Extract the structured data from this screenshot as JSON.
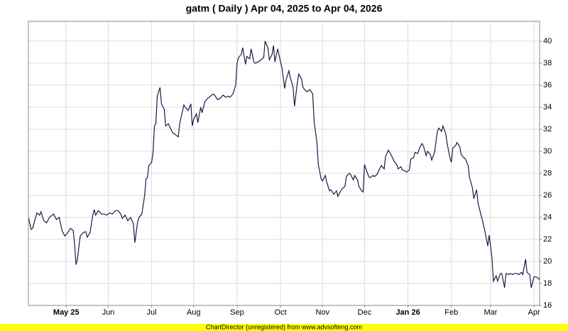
{
  "chart_data": {
    "type": "line",
    "title": "gatm ( Daily ) Apr 04, 2025 to Apr 04, 2026",
    "footer": "ChartDirector (unregistered) from www.advsofteng.com",
    "x": [
      0,
      2,
      3,
      6,
      8,
      9,
      11,
      13,
      15,
      18,
      20,
      22,
      24,
      26,
      28,
      30,
      32,
      33,
      34,
      35,
      37,
      39,
      41,
      42,
      44,
      46,
      47,
      48,
      50,
      52,
      54,
      56,
      58,
      60,
      62,
      64,
      66,
      67,
      69,
      71,
      73,
      75,
      76,
      78,
      79,
      81,
      83,
      84,
      85,
      86,
      88,
      89,
      90,
      91,
      92,
      94,
      95,
      97,
      98,
      100,
      101,
      103,
      105,
      107,
      108,
      111,
      112,
      114,
      116,
      117,
      118,
      120,
      121,
      123,
      124,
      126,
      128,
      130,
      132,
      133,
      135,
      137,
      139,
      141,
      143,
      144,
      146,
      148,
      149,
      150,
      152,
      153,
      155,
      156,
      158,
      159,
      161,
      162,
      164,
      166,
      168,
      169,
      171,
      172,
      174,
      175,
      176,
      178,
      179,
      181,
      183,
      184,
      186,
      187,
      189,
      190,
      192,
      193,
      195,
      196,
      198,
      199,
      201,
      203,
      204,
      206,
      207,
      209,
      210,
      212,
      213,
      215,
      216,
      218,
      220,
      221,
      223,
      224,
      226,
      227,
      229,
      230,
      232,
      233,
      235,
      236,
      238,
      239,
      240,
      241,
      243,
      244,
      246,
      247,
      249,
      250,
      252,
      254,
      255,
      257,
      258,
      260,
      261,
      263,
      264,
      266,
      267,
      269,
      270,
      272,
      273,
      275,
      276,
      278,
      279,
      281,
      282,
      284,
      285,
      287,
      288,
      290,
      292,
      293,
      295,
      296,
      298,
      299,
      301,
      302,
      303,
      305,
      306,
      308,
      309,
      311,
      312,
      314,
      315,
      317,
      318,
      320,
      321,
      323,
      324,
      326,
      328,
      329,
      331,
      332,
      334,
      335,
      337,
      338,
      340,
      341,
      343,
      344,
      346,
      347,
      349,
      350,
      352,
      353,
      355,
      356,
      358,
      359,
      361,
      362,
      364,
      365
    ],
    "series": [
      {
        "color": "#1a1a4a",
        "values": [
          24.0,
          22.9,
          23.0,
          24.4,
          24.2,
          24.5,
          23.7,
          23.5,
          24.0,
          24.3,
          23.8,
          24.0,
          22.8,
          22.3,
          22.6,
          23.0,
          22.8,
          21.5,
          19.7,
          20.2,
          22.3,
          22.6,
          22.7,
          22.2,
          22.6,
          24.2,
          24.7,
          24.2,
          24.6,
          24.3,
          24.3,
          24.2,
          24.4,
          24.3,
          24.6,
          24.6,
          24.3,
          23.9,
          24.2,
          23.7,
          24.0,
          23.4,
          21.7,
          23.6,
          24.0,
          24.3,
          26.0,
          27.5,
          27.6,
          28.7,
          29.0,
          29.9,
          32.3,
          32.5,
          35.0,
          35.8,
          34.3,
          33.8,
          32.3,
          32.5,
          32.2,
          31.7,
          31.5,
          31.3,
          32.5,
          34.2,
          34.0,
          33.7,
          34.3,
          32.3,
          32.9,
          33.4,
          32.6,
          34.0,
          33.5,
          34.5,
          34.8,
          35.0,
          35.2,
          35.1,
          34.7,
          34.8,
          35.1,
          34.9,
          35.0,
          34.9,
          35.2,
          36.0,
          38.0,
          38.5,
          38.8,
          39.4,
          37.9,
          38.6,
          38.4,
          39.3,
          38.1,
          38.0,
          38.1,
          38.3,
          38.5,
          40.0,
          39.4,
          38.3,
          38.8,
          39.6,
          38.1,
          39.3,
          38.7,
          37.6,
          35.7,
          36.5,
          37.3,
          36.7,
          35.8,
          34.1,
          36.2,
          37.0,
          36.6,
          35.8,
          35.5,
          35.4,
          35.6,
          35.2,
          32.7,
          30.8,
          28.8,
          27.5,
          27.3,
          27.8,
          27.2,
          26.4,
          26.5,
          26.1,
          26.4,
          25.9,
          26.4,
          26.6,
          26.8,
          27.7,
          28.0,
          27.9,
          27.4,
          27.8,
          27.4,
          26.8,
          26.4,
          26.3,
          28.8,
          28.4,
          27.7,
          27.6,
          27.8,
          27.7,
          27.9,
          28.2,
          28.7,
          28.4,
          29.5,
          30.1,
          29.9,
          29.4,
          29.1,
          28.8,
          28.4,
          28.6,
          28.3,
          28.2,
          28.1,
          28.3,
          29.3,
          29.4,
          29.9,
          29.8,
          30.2,
          30.7,
          30.5,
          29.6,
          30.0,
          29.7,
          29.2,
          29.9,
          31.8,
          32.1,
          31.8,
          32.3,
          31.6,
          30.7,
          29.4,
          29.0,
          30.3,
          30.5,
          30.8,
          30.4,
          29.7,
          29.4,
          29.3,
          28.7,
          27.6,
          26.7,
          25.7,
          26.5,
          25.3,
          24.3,
          23.8,
          22.7,
          21.4,
          22.4,
          20.3,
          18.2,
          18.7,
          18.2,
          18.9,
          18.9,
          17.6,
          18.9,
          18.8,
          18.9,
          18.8,
          18.9,
          18.9,
          18.8,
          19.0,
          18.8,
          20.2,
          19.0,
          18.8,
          17.6,
          18.6,
          18.6,
          18.5,
          18.3
        ]
      }
    ],
    "xlim": [
      0,
      365
    ],
    "xticks": [
      {
        "value": 27,
        "label": "May 25"
      },
      {
        "value": 57,
        "label": "Jun"
      },
      {
        "value": 88,
        "label": "Jul"
      },
      {
        "value": 118,
        "label": "Aug"
      },
      {
        "value": 149,
        "label": "Sep"
      },
      {
        "value": 180,
        "label": "Oct"
      },
      {
        "value": 210,
        "label": "Nov"
      },
      {
        "value": 240,
        "label": "Dec"
      },
      {
        "value": 271,
        "label": "Jan 26"
      },
      {
        "value": 302,
        "label": "Feb"
      },
      {
        "value": 330,
        "label": "Mar"
      },
      {
        "value": 361,
        "label": "Apr"
      }
    ],
    "ylim": [
      16,
      41.8
    ],
    "yticks": [
      16,
      18,
      20,
      22,
      24,
      26,
      28,
      30,
      32,
      34,
      36,
      38,
      40
    ],
    "grid": true
  }
}
